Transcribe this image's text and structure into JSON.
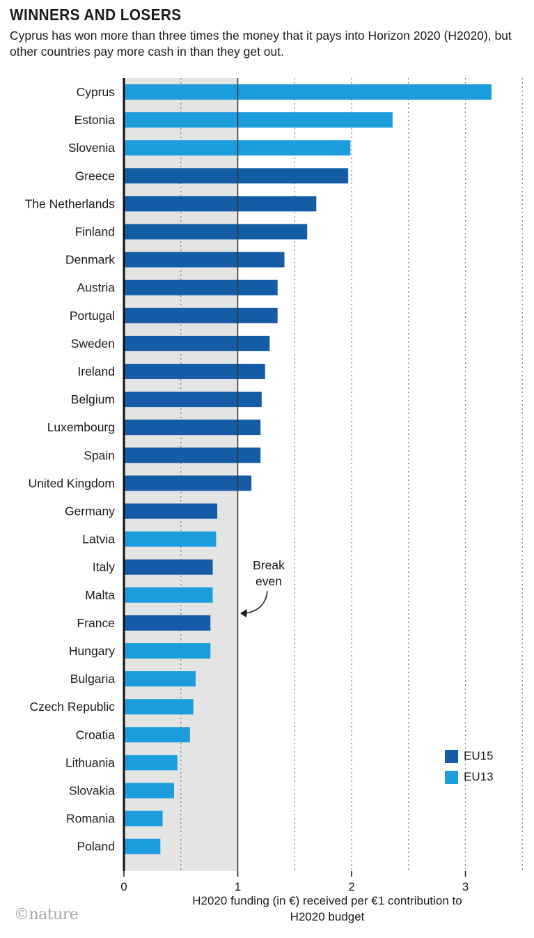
{
  "header": {
    "title": "WINNERS AND LOSERS",
    "subtitle": "Cyprus has won more than three times the money that it pays into Horizon 2020 (H2020), but other countries pay more cash in than they get out."
  },
  "credit": "©nature",
  "colors": {
    "EU15": "#155ca6",
    "EU13": "#1c9ddc",
    "shade": "#e4e4e4"
  },
  "chart_data": {
    "type": "bar",
    "orientation": "horizontal",
    "title": "WINNERS AND LOSERS",
    "xlabel": "H2020 funding (in €) received per €1 contribution to H2020 budget",
    "ylabel": "",
    "xlim": [
      0,
      3.5
    ],
    "xticks": [
      0,
      1,
      2,
      3
    ],
    "xtick_labels": [
      "0",
      "1",
      "2",
      "3"
    ],
    "grid": "vertical dotted lines every 0.5",
    "shaded_region": [
      0,
      1
    ],
    "annotation": {
      "text": [
        "Break",
        "even"
      ],
      "x": 1
    },
    "legend": {
      "placement": "bottom-right",
      "entries": [
        "EU15",
        "EU13"
      ]
    },
    "categories": [
      "Cyprus",
      "Estonia",
      "Slovenia",
      "Greece",
      "The Netherlands",
      "Finland",
      "Denmark",
      "Austria",
      "Portugal",
      "Sweden",
      "Ireland",
      "Belgium",
      "Luxembourg",
      "Spain",
      "United Kingdom",
      "Germany",
      "Latvia",
      "Italy",
      "Malta",
      "France",
      "Hungary",
      "Bulgaria",
      "Czech Republic",
      "Croatia",
      "Lithuania",
      "Slovakia",
      "Romania",
      "Poland"
    ],
    "values": [
      3.23,
      2.36,
      1.99,
      1.97,
      1.69,
      1.61,
      1.41,
      1.35,
      1.35,
      1.28,
      1.24,
      1.21,
      1.2,
      1.2,
      1.12,
      0.82,
      0.81,
      0.78,
      0.78,
      0.76,
      0.76,
      0.63,
      0.61,
      0.58,
      0.47,
      0.44,
      0.34,
      0.32
    ],
    "groups": [
      "EU13",
      "EU13",
      "EU13",
      "EU15",
      "EU15",
      "EU15",
      "EU15",
      "EU15",
      "EU15",
      "EU15",
      "EU15",
      "EU15",
      "EU15",
      "EU15",
      "EU15",
      "EU15",
      "EU13",
      "EU15",
      "EU13",
      "EU15",
      "EU13",
      "EU13",
      "EU13",
      "EU13",
      "EU13",
      "EU13",
      "EU13",
      "EU13"
    ]
  }
}
